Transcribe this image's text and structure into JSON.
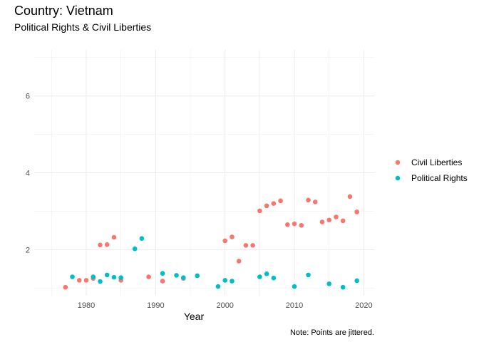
{
  "chart_data": {
    "type": "scatter",
    "title": "Country: Vietnam",
    "subtitle": "Political Rights & Civil Liberties",
    "xlabel": "Year",
    "ylabel": "",
    "caption": "Note: Points are jittered.",
    "xlim": [
      1972.5,
      2021.5
    ],
    "ylim": [
      0.8,
      7.2
    ],
    "x_ticks": [
      1980,
      1990,
      2000,
      2010,
      2020
    ],
    "y_ticks": [
      2,
      4,
      6
    ],
    "grid": true,
    "legend_position": "right",
    "series": [
      {
        "name": "Civil Liberties",
        "color": "#F8766D",
        "points": [
          [
            1977.0,
            1.02
          ],
          [
            1979.0,
            1.2
          ],
          [
            1980.0,
            1.2
          ],
          [
            1981.0,
            1.25
          ],
          [
            1982.0,
            2.12
          ],
          [
            1983.0,
            2.13
          ],
          [
            1984.0,
            2.32
          ],
          [
            1985.0,
            1.2
          ],
          [
            1989.0,
            1.29
          ],
          [
            1991.0,
            1.18
          ],
          [
            1994.0,
            1.25
          ],
          [
            2000.0,
            2.23
          ],
          [
            2001.0,
            2.33
          ],
          [
            2002.0,
            1.7
          ],
          [
            2003.0,
            2.11
          ],
          [
            2004.0,
            2.11
          ],
          [
            2005.0,
            3.01
          ],
          [
            2006.0,
            3.14
          ],
          [
            2007.0,
            3.2
          ],
          [
            2008.0,
            3.27
          ],
          [
            2009.0,
            2.65
          ],
          [
            2010.0,
            2.67
          ],
          [
            2011.0,
            2.63
          ],
          [
            2012.0,
            3.29
          ],
          [
            2013.0,
            3.24
          ],
          [
            2014.0,
            2.72
          ],
          [
            2015.0,
            2.77
          ],
          [
            2016.0,
            2.85
          ],
          [
            2017.0,
            2.75
          ],
          [
            2018.0,
            3.38
          ],
          [
            2019.0,
            2.98
          ]
        ]
      },
      {
        "name": "Political Rights",
        "color": "#00BFC4",
        "points": [
          [
            1978.0,
            1.29
          ],
          [
            1981.0,
            1.29
          ],
          [
            1982.0,
            1.17
          ],
          [
            1983.0,
            1.34
          ],
          [
            1984.0,
            1.28
          ],
          [
            1985.0,
            1.27
          ],
          [
            1987.0,
            2.02
          ],
          [
            1988.0,
            2.29
          ],
          [
            1991.0,
            1.38
          ],
          [
            1993.0,
            1.33
          ],
          [
            1994.0,
            1.27
          ],
          [
            1996.0,
            1.32
          ],
          [
            1999.0,
            1.04
          ],
          [
            2000.0,
            1.2
          ],
          [
            2001.0,
            1.18
          ],
          [
            2005.0,
            1.29
          ],
          [
            2006.0,
            1.37
          ],
          [
            2007.0,
            1.26
          ],
          [
            2010.0,
            1.04
          ],
          [
            2012.0,
            1.34
          ],
          [
            2015.0,
            1.11
          ],
          [
            2017.0,
            1.02
          ],
          [
            2019.0,
            1.19
          ]
        ]
      }
    ]
  }
}
